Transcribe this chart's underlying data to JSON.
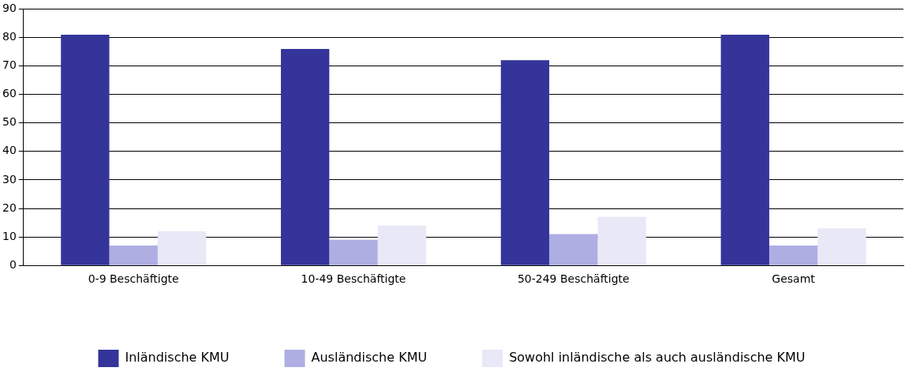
{
  "chart_data": {
    "type": "bar",
    "categories": [
      "0-9 Beschäftigte",
      "10-49 Beschäftigte",
      "50-249 Beschäftigte",
      "Gesamt"
    ],
    "series": [
      {
        "name": "Inländische KMU",
        "color": "#35349a",
        "values": [
          81,
          76,
          72,
          81
        ]
      },
      {
        "name": "Ausländische KMU",
        "color": "#aeaee3",
        "values": [
          7,
          9,
          11,
          7
        ]
      },
      {
        "name": "Sowohl inländische als auch ausländische KMU",
        "color": "#e8e8f7",
        "values": [
          12,
          14,
          17,
          13
        ]
      }
    ],
    "ylim": [
      0,
      90
    ],
    "yticks": [
      0,
      10,
      20,
      30,
      40,
      50,
      60,
      70,
      80,
      90
    ],
    "grid": "y",
    "legend": "bottom"
  }
}
